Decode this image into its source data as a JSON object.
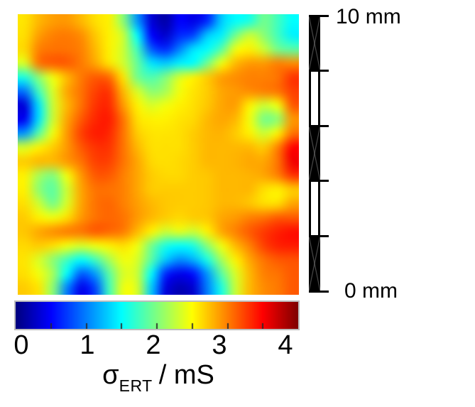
{
  "chart_data": {
    "type": "heatmap",
    "title": "",
    "colormap": "jet",
    "units": "mS",
    "value_range": [
      0,
      4
    ],
    "grid": {
      "rows": 20,
      "cols": 20
    },
    "values": [
      [
        2.6,
        2.78,
        2.88,
        2.9,
        2.78,
        2.62,
        2.55,
        2.05,
        1.1,
        0.35,
        0.15,
        0.5,
        0.4,
        0.65,
        1.3,
        1.5,
        1.6,
        1.95,
        1.75,
        1.5
      ],
      [
        2.62,
        2.88,
        3.0,
        3.02,
        2.95,
        2.72,
        2.55,
        2.3,
        1.5,
        0.5,
        0.3,
        0.65,
        0.75,
        1.3,
        1.45,
        1.95,
        2.3,
        2.05,
        1.75,
        1.45
      ],
      [
        2.65,
        3.0,
        3.05,
        3.05,
        3.0,
        2.78,
        2.55,
        2.3,
        1.75,
        0.85,
        0.65,
        1.0,
        1.4,
        1.5,
        1.85,
        2.45,
        2.55,
        2.3,
        1.95,
        1.85
      ],
      [
        2.35,
        3.05,
        3.15,
        3.15,
        3.02,
        2.85,
        2.6,
        2.32,
        1.9,
        1.4,
        1.3,
        1.45,
        1.5,
        1.95,
        2.45,
        2.78,
        2.9,
        2.9,
        3.0,
        2.95
      ],
      [
        1.6,
        2.05,
        2.45,
        2.78,
        3.02,
        3.15,
        3.1,
        2.6,
        1.95,
        1.8,
        2.0,
        2.35,
        2.55,
        2.7,
        2.88,
        2.95,
        3.0,
        3.0,
        3.05,
        3.3
      ],
      [
        0.95,
        1.75,
        2.35,
        2.85,
        3.05,
        3.25,
        3.3,
        2.78,
        2.35,
        2.05,
        2.15,
        2.45,
        2.6,
        2.7,
        2.85,
        2.9,
        2.95,
        3.0,
        3.05,
        3.25
      ],
      [
        0.35,
        1.4,
        2.3,
        2.78,
        3.05,
        3.3,
        3.35,
        2.9,
        2.55,
        2.35,
        2.45,
        2.55,
        2.62,
        2.72,
        2.85,
        2.88,
        2.55,
        2.3,
        2.45,
        3.15
      ],
      [
        0.45,
        1.4,
        2.3,
        2.85,
        3.15,
        3.35,
        3.4,
        3.05,
        2.62,
        2.55,
        2.55,
        2.6,
        2.65,
        2.78,
        2.85,
        2.78,
        2.45,
        1.95,
        2.05,
        2.9
      ],
      [
        1.1,
        1.85,
        2.45,
        2.9,
        3.25,
        3.4,
        3.35,
        3.05,
        2.7,
        2.6,
        2.6,
        2.62,
        2.7,
        2.78,
        2.8,
        2.7,
        2.55,
        2.3,
        2.55,
        3.05
      ],
      [
        2.35,
        2.55,
        2.7,
        2.9,
        3.15,
        3.3,
        3.3,
        3.05,
        2.78,
        2.62,
        2.62,
        2.62,
        2.7,
        2.78,
        2.78,
        2.78,
        2.78,
        2.7,
        3.0,
        3.5
      ],
      [
        2.7,
        2.78,
        2.78,
        2.9,
        3.05,
        3.25,
        3.25,
        3.05,
        2.85,
        2.65,
        2.62,
        2.65,
        2.7,
        2.78,
        2.78,
        2.8,
        2.85,
        2.85,
        3.05,
        3.55
      ],
      [
        2.55,
        2.15,
        2.0,
        2.45,
        2.9,
        3.15,
        3.15,
        3.0,
        2.85,
        2.7,
        2.65,
        2.65,
        2.7,
        2.72,
        2.78,
        2.78,
        2.8,
        2.85,
        3.0,
        3.3
      ],
      [
        2.55,
        2.05,
        1.85,
        2.3,
        2.85,
        3.05,
        3.05,
        3.0,
        2.85,
        2.7,
        2.7,
        2.7,
        2.7,
        2.72,
        2.78,
        2.78,
        2.78,
        2.62,
        2.55,
        2.7
      ],
      [
        2.62,
        2.3,
        1.95,
        2.35,
        2.85,
        3.05,
        3.1,
        3.0,
        2.88,
        2.78,
        2.72,
        2.7,
        2.7,
        2.72,
        2.78,
        2.78,
        2.72,
        2.62,
        2.62,
        2.85
      ],
      [
        2.7,
        2.55,
        2.45,
        2.62,
        2.9,
        3.05,
        3.1,
        3.05,
        2.9,
        2.78,
        2.7,
        2.65,
        2.7,
        2.72,
        2.85,
        2.9,
        3.0,
        3.05,
        3.15,
        3.15
      ],
      [
        2.72,
        2.85,
        2.95,
        3.02,
        3.05,
        3.15,
        3.1,
        3.02,
        2.78,
        2.55,
        2.3,
        2.4,
        2.3,
        2.55,
        2.85,
        3.0,
        3.15,
        3.28,
        3.38,
        3.45
      ],
      [
        2.65,
        2.7,
        2.62,
        2.45,
        2.35,
        2.45,
        2.55,
        2.62,
        2.45,
        1.95,
        1.6,
        1.5,
        1.6,
        2.05,
        2.45,
        2.78,
        3.0,
        3.25,
        3.38,
        3.4
      ],
      [
        2.6,
        2.35,
        2.05,
        1.75,
        1.5,
        1.75,
        2.15,
        2.45,
        2.35,
        1.85,
        1.3,
        1.05,
        1.2,
        1.6,
        2.15,
        2.55,
        2.85,
        3.05,
        3.15,
        3.18
      ],
      [
        2.62,
        2.45,
        2.15,
        1.5,
        0.85,
        1.1,
        1.85,
        2.35,
        2.3,
        1.5,
        0.65,
        0.42,
        0.55,
        1.1,
        1.85,
        2.35,
        2.78,
        3.0,
        3.05,
        3.15
      ],
      [
        2.7,
        2.6,
        2.05,
        1.0,
        0.42,
        0.75,
        1.75,
        2.45,
        2.35,
        1.3,
        0.38,
        0.2,
        0.32,
        1.0,
        1.6,
        2.3,
        2.78,
        2.95,
        3.02,
        3.15
      ]
    ],
    "colorbar": {
      "tick_labels": [
        "0",
        "1",
        "2",
        "3",
        "4"
      ],
      "tick_values": [
        0,
        1,
        2,
        3,
        4
      ],
      "minor_tick_values": [
        0.5,
        1,
        1.5,
        2,
        2.5,
        3,
        3.5
      ],
      "label_parts": {
        "symbol": "σ",
        "subscript": "ERT",
        "unit": "/ mS"
      }
    },
    "scale_bar": {
      "top_label": "10 mm",
      "bottom_label": "0 mm",
      "segments": 5,
      "length_mm": 10
    }
  },
  "style": {
    "background": "#ffffff",
    "text_color": "#000000",
    "scalebar_color": "#000000",
    "colorbar_border": "#bdbdbd"
  }
}
